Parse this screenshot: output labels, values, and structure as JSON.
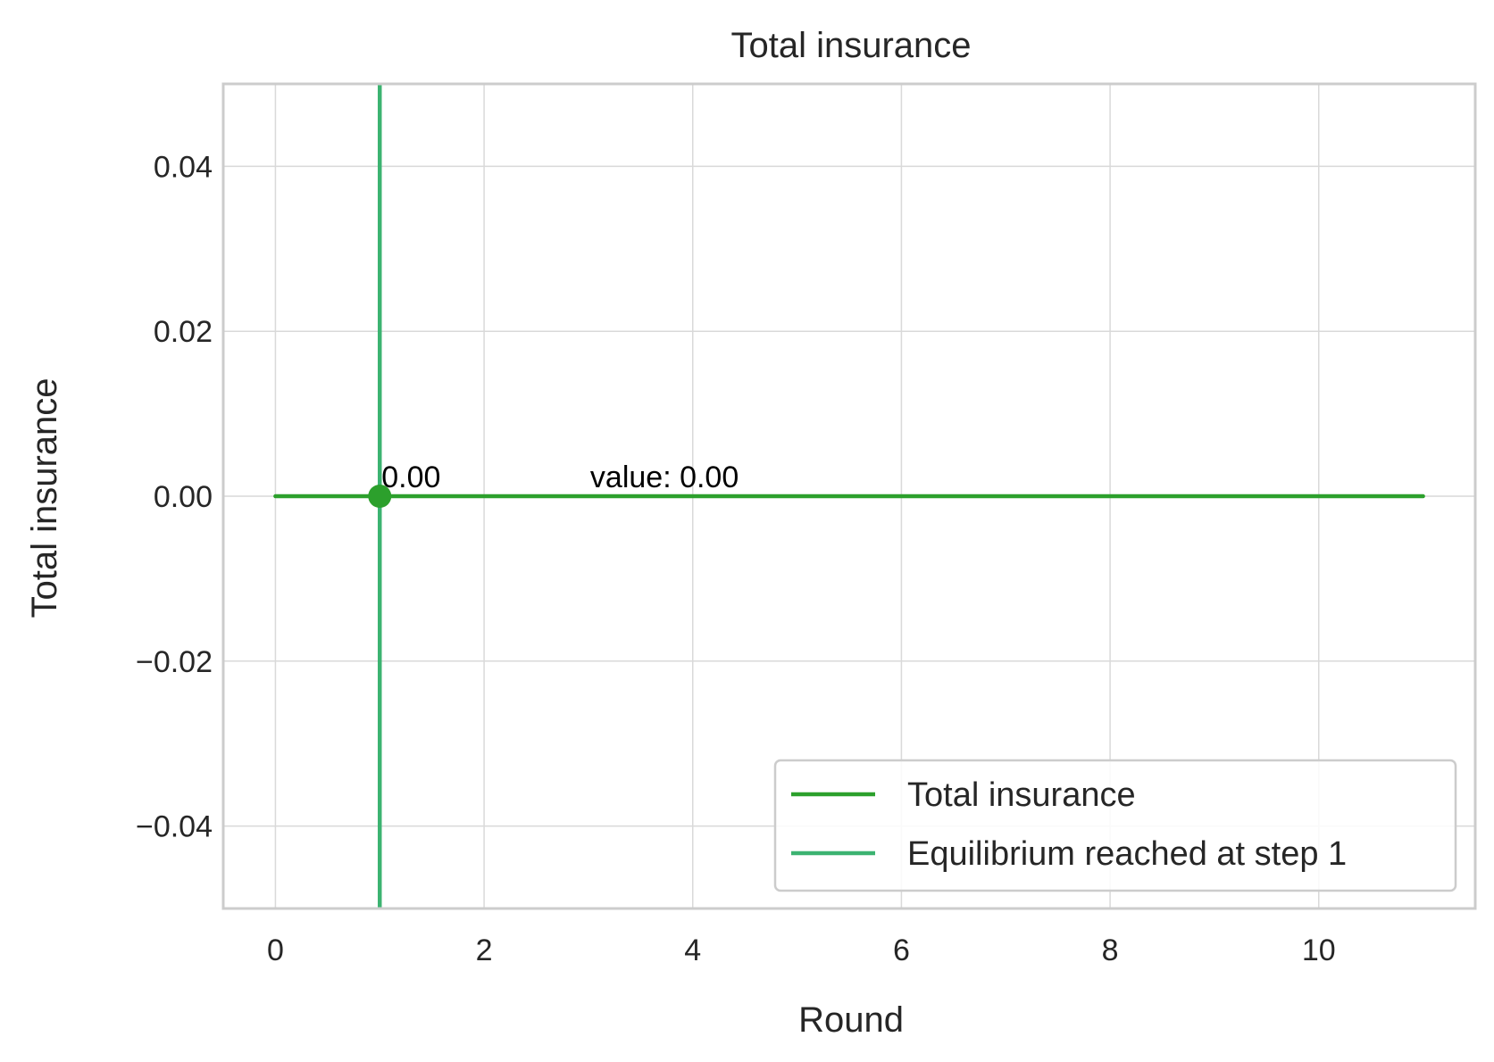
{
  "chart_data": {
    "type": "line",
    "title": "Total insurance",
    "xlabel": "Round",
    "ylabel": "Total insurance",
    "xlim": [
      -0.5,
      11.5
    ],
    "ylim": [
      -0.05,
      0.05
    ],
    "xticks": [
      0,
      2,
      4,
      6,
      8,
      10
    ],
    "yticks": [
      0.04,
      0.02,
      0.0,
      -0.02,
      -0.04
    ],
    "xtick_labels": [
      "0",
      "2",
      "4",
      "6",
      "8",
      "10"
    ],
    "ytick_labels": [
      "0.04",
      "0.02",
      "0.00",
      "−0.02",
      "−0.04"
    ],
    "grid": true,
    "series": [
      {
        "name": "Total insurance",
        "x": [
          0,
          1,
          2,
          3,
          4,
          5,
          6,
          7,
          8,
          9,
          10,
          11
        ],
        "values": [
          0,
          0,
          0,
          0,
          0,
          0,
          0,
          0,
          0,
          0,
          0,
          0
        ],
        "color": "#2ca02c"
      }
    ],
    "vline": {
      "x": 1,
      "name": "Equilibrium reached at step 1",
      "color": "#3cb371"
    },
    "marker": {
      "x": 1,
      "y": 0.0,
      "color": "#2ca02c"
    },
    "annotations": [
      {
        "text": "0.00",
        "x": 1,
        "y": 0.0
      },
      {
        "text": "value: 0.00",
        "x": 3,
        "y": 0.0
      }
    ],
    "legend": {
      "position": "lower-right",
      "entries": [
        {
          "label": "Total insurance",
          "color": "#2ca02c"
        },
        {
          "label": "Equilibrium reached at step 1",
          "color": "#3cb371"
        }
      ]
    }
  }
}
